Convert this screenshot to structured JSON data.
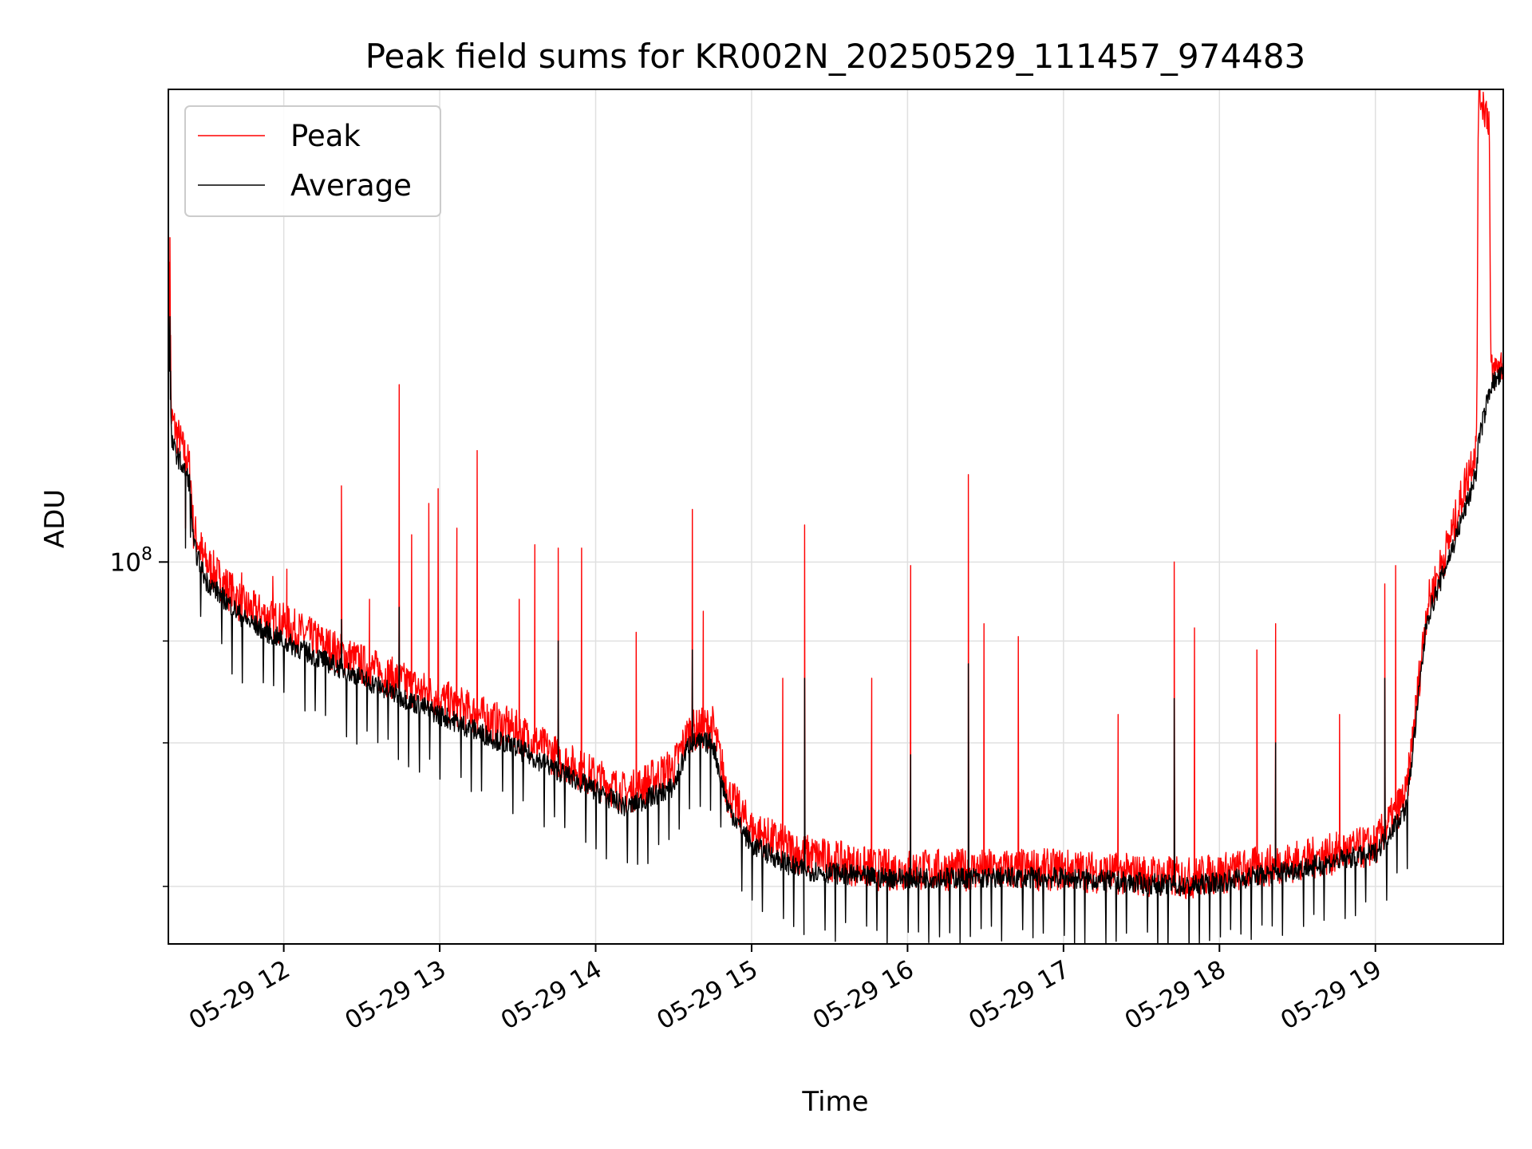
{
  "chart_data": {
    "type": "line",
    "title": "Peak field sums for KR002N_20250529_111457_974483",
    "xlabel": "Time",
    "ylabel": "ADU",
    "yscale": "log",
    "x_tick_labels": [
      "05-29 12",
      "05-29 13",
      "05-29 14",
      "05-29 15",
      "05-29 16",
      "05-29 17",
      "05-29 18",
      "05-29 19"
    ],
    "x_ticks_hours": [
      12,
      13,
      14,
      15,
      16,
      17,
      18,
      19
    ],
    "x_range_hours": [
      11.26,
      19.82
    ],
    "ylim": [
      34000000,
      380000000
    ],
    "y_major_tick_base": "10",
    "y_major_tick_exp": "8",
    "y_major_tick_value": 100000000,
    "y_minor_ticks": [
      40000000,
      60000000,
      80000000
    ],
    "grid": true,
    "legend": {
      "placement": "top-left",
      "entries": [
        "Peak",
        "Average"
      ]
    },
    "colors": {
      "Peak": "#ff0000",
      "Average": "#000000",
      "grid": "#e0e0e0"
    },
    "series": [
      {
        "name": "Peak",
        "baseline": [
          [
            11.26,
            240000000
          ],
          [
            11.28,
            150000000
          ],
          [
            11.4,
            130000000
          ],
          [
            11.42,
            110000000
          ],
          [
            11.5,
            100000000
          ],
          [
            11.75,
            88000000
          ],
          [
            12.0,
            84000000
          ],
          [
            12.5,
            75000000
          ],
          [
            13.0,
            68000000
          ],
          [
            13.5,
            62000000
          ],
          [
            13.8,
            57000000
          ],
          [
            14.2,
            52000000
          ],
          [
            14.5,
            56000000
          ],
          [
            14.6,
            62000000
          ],
          [
            14.75,
            63000000
          ],
          [
            14.85,
            52000000
          ],
          [
            15.0,
            47000000
          ],
          [
            15.3,
            44000000
          ],
          [
            15.8,
            42000000
          ],
          [
            16.5,
            42000000
          ],
          [
            17.0,
            42000000
          ],
          [
            17.8,
            41000000
          ],
          [
            18.5,
            43000000
          ],
          [
            19.0,
            45000000
          ],
          [
            19.2,
            52000000
          ],
          [
            19.33,
            88000000
          ],
          [
            19.5,
            110000000
          ],
          [
            19.6,
            130000000
          ],
          [
            19.65,
            140000000
          ],
          [
            19.66,
            380000000
          ],
          [
            19.73,
            350000000
          ],
          [
            19.74,
            170000000
          ],
          [
            19.82,
            175000000
          ]
        ],
        "spikes": [
          [
            11.27,
            250000000
          ],
          [
            11.37,
            110000000
          ],
          [
            11.48,
            97000000
          ],
          [
            11.59,
            98000000
          ],
          [
            11.73,
            97000000
          ],
          [
            11.93,
            96000000
          ],
          [
            12.02,
            98000000
          ],
          [
            12.37,
            124000000
          ],
          [
            12.55,
            90000000
          ],
          [
            12.74,
            165000000
          ],
          [
            12.82,
            108000000
          ],
          [
            12.93,
            118000000
          ],
          [
            12.99,
            123000000
          ],
          [
            13.11,
            110000000
          ],
          [
            13.24,
            137000000
          ],
          [
            13.51,
            90000000
          ],
          [
            13.61,
            105000000
          ],
          [
            13.76,
            104000000
          ],
          [
            13.91,
            104000000
          ],
          [
            14.26,
            82000000
          ],
          [
            14.62,
            116000000
          ],
          [
            14.69,
            87000000
          ],
          [
            15.2,
            72000000
          ],
          [
            15.34,
            111000000
          ],
          [
            15.77,
            72000000
          ],
          [
            16.02,
            99000000
          ],
          [
            16.39,
            128000000
          ],
          [
            16.49,
            84000000
          ],
          [
            16.71,
            81000000
          ],
          [
            17.35,
            65000000
          ],
          [
            17.71,
            100000000
          ],
          [
            17.84,
            83000000
          ],
          [
            18.24,
            78000000
          ],
          [
            18.36,
            84000000
          ],
          [
            18.77,
            65000000
          ],
          [
            19.06,
            94000000
          ],
          [
            19.13,
            99000000
          ]
        ],
        "dips": []
      },
      {
        "name": "Average",
        "baseline": [
          [
            11.26,
            210000000
          ],
          [
            11.28,
            140000000
          ],
          [
            11.4,
            125000000
          ],
          [
            11.42,
            105000000
          ],
          [
            11.5,
            95000000
          ],
          [
            11.75,
            85000000
          ],
          [
            12.0,
            80000000
          ],
          [
            12.5,
            72000000
          ],
          [
            13.0,
            65000000
          ],
          [
            13.5,
            59000000
          ],
          [
            13.8,
            55000000
          ],
          [
            14.2,
            50000000
          ],
          [
            14.5,
            53000000
          ],
          [
            14.6,
            60000000
          ],
          [
            14.75,
            60000000
          ],
          [
            14.85,
            50000000
          ],
          [
            15.0,
            45000000
          ],
          [
            15.3,
            42000000
          ],
          [
            15.8,
            41000000
          ],
          [
            16.5,
            41000000
          ],
          [
            17.0,
            41000000
          ],
          [
            17.8,
            40000000
          ],
          [
            18.5,
            42000000
          ],
          [
            19.0,
            44000000
          ],
          [
            19.2,
            50000000
          ],
          [
            19.33,
            85000000
          ],
          [
            19.5,
            105000000
          ],
          [
            19.6,
            120000000
          ],
          [
            19.65,
            130000000
          ],
          [
            19.66,
            140000000
          ],
          [
            19.74,
            165000000
          ],
          [
            19.82,
            170000000
          ]
        ],
        "spikes": [
          [
            11.27,
            200000000
          ],
          [
            11.37,
            104000000
          ],
          [
            12.37,
            85000000
          ],
          [
            12.74,
            88000000
          ],
          [
            13.76,
            80000000
          ],
          [
            14.62,
            78000000
          ],
          [
            15.34,
            72000000
          ],
          [
            16.02,
            58000000
          ],
          [
            16.39,
            75000000
          ],
          [
            17.71,
            68000000
          ],
          [
            18.36,
            60000000
          ],
          [
            19.06,
            72000000
          ]
        ],
        "dips": {
          "start": 11.4,
          "end": 19.25,
          "period": 0.0667,
          "depth_factor": 0.85
        }
      }
    ]
  }
}
